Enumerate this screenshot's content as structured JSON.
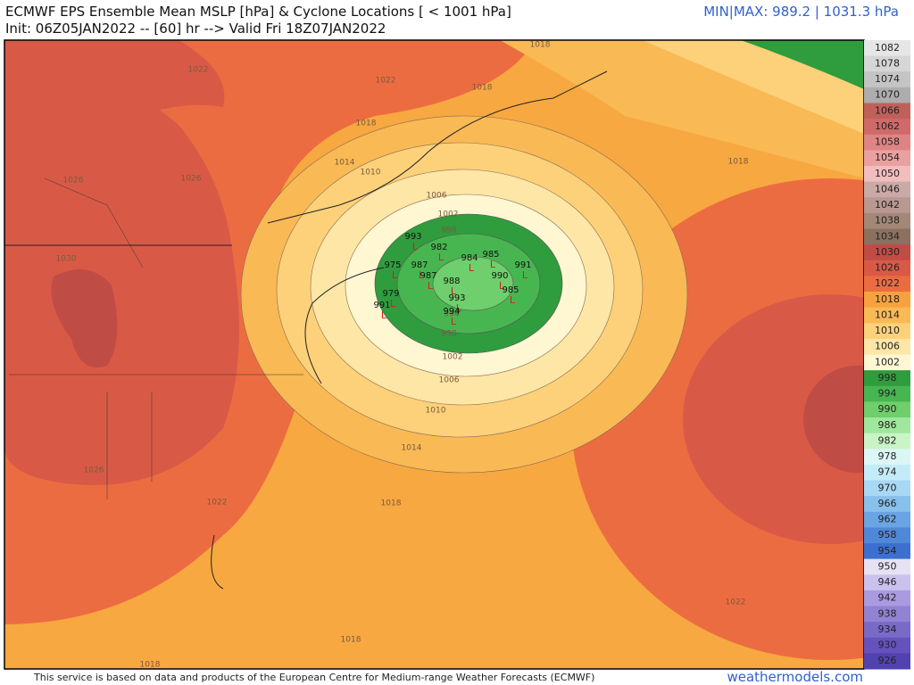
{
  "header": {
    "title": "ECMWF EPS Ensemble Mean MSLP [hPa] & Cyclone Locations [ < 1001 hPa]",
    "subtitle": "Init: 06Z05JAN2022 -- [60] hr --> Valid Fri 18Z07JAN2022",
    "minmax": "MIN|MAX: 989.2 | 1031.3 hPa"
  },
  "colorbar": {
    "levels": [
      1082,
      1078,
      1074,
      1070,
      1066,
      1062,
      1058,
      1054,
      1050,
      1046,
      1042,
      1038,
      1034,
      1030,
      1026,
      1022,
      1018,
      1014,
      1010,
      1006,
      1002,
      998,
      994,
      990,
      986,
      982,
      978,
      974,
      970,
      966,
      962,
      958,
      954,
      950,
      946,
      942,
      938,
      934,
      930,
      926
    ],
    "colors": [
      "#e6e6e6",
      "#d6d6d6",
      "#c4c4c4",
      "#adadad",
      "#c0605a",
      "#d06a6a",
      "#de8484",
      "#e9a0a0",
      "#f2bdbd",
      "#caaaa6",
      "#b89890",
      "#a38878",
      "#8c7060",
      "#c04c46",
      "#d85a46",
      "#ec6c42",
      "#f7a23e",
      "#f9b955",
      "#fcd17a",
      "#fde6a6",
      "#fff7d2",
      "#2f9c3e",
      "#48b650",
      "#6ecf6c",
      "#9fe79c",
      "#c9f4c6",
      "#dcf6f6",
      "#c4ecf8",
      "#a8d8f4",
      "#88c0ec",
      "#6aa4e4",
      "#5088d8",
      "#3c70d0",
      "#e6e2f4",
      "#cac2ec",
      "#aa9ae0",
      "#9282d4",
      "#7a6ac8",
      "#6652bc",
      "#5242b0"
    ]
  },
  "contour_labels": [
    1018,
    1022,
    1022,
    1026,
    1026,
    1030,
    1026,
    1022,
    1018,
    1014,
    1010,
    1006,
    1002,
    998,
    994,
    998,
    1002,
    1006,
    1010,
    1014,
    1018,
    1018,
    1022,
    1018,
    1018,
    1018
  ],
  "cyclones": [
    993,
    982,
    979,
    991,
    987,
    985,
    984,
    991,
    988,
    990,
    985,
    993,
    994,
    987,
    975
  ],
  "low_symbol": "L",
  "footer": {
    "credit": "This service is based on data and products of the European Centre for Medium-range Weather Forecasts (ECMWF)",
    "site": "weathermodels.com"
  }
}
